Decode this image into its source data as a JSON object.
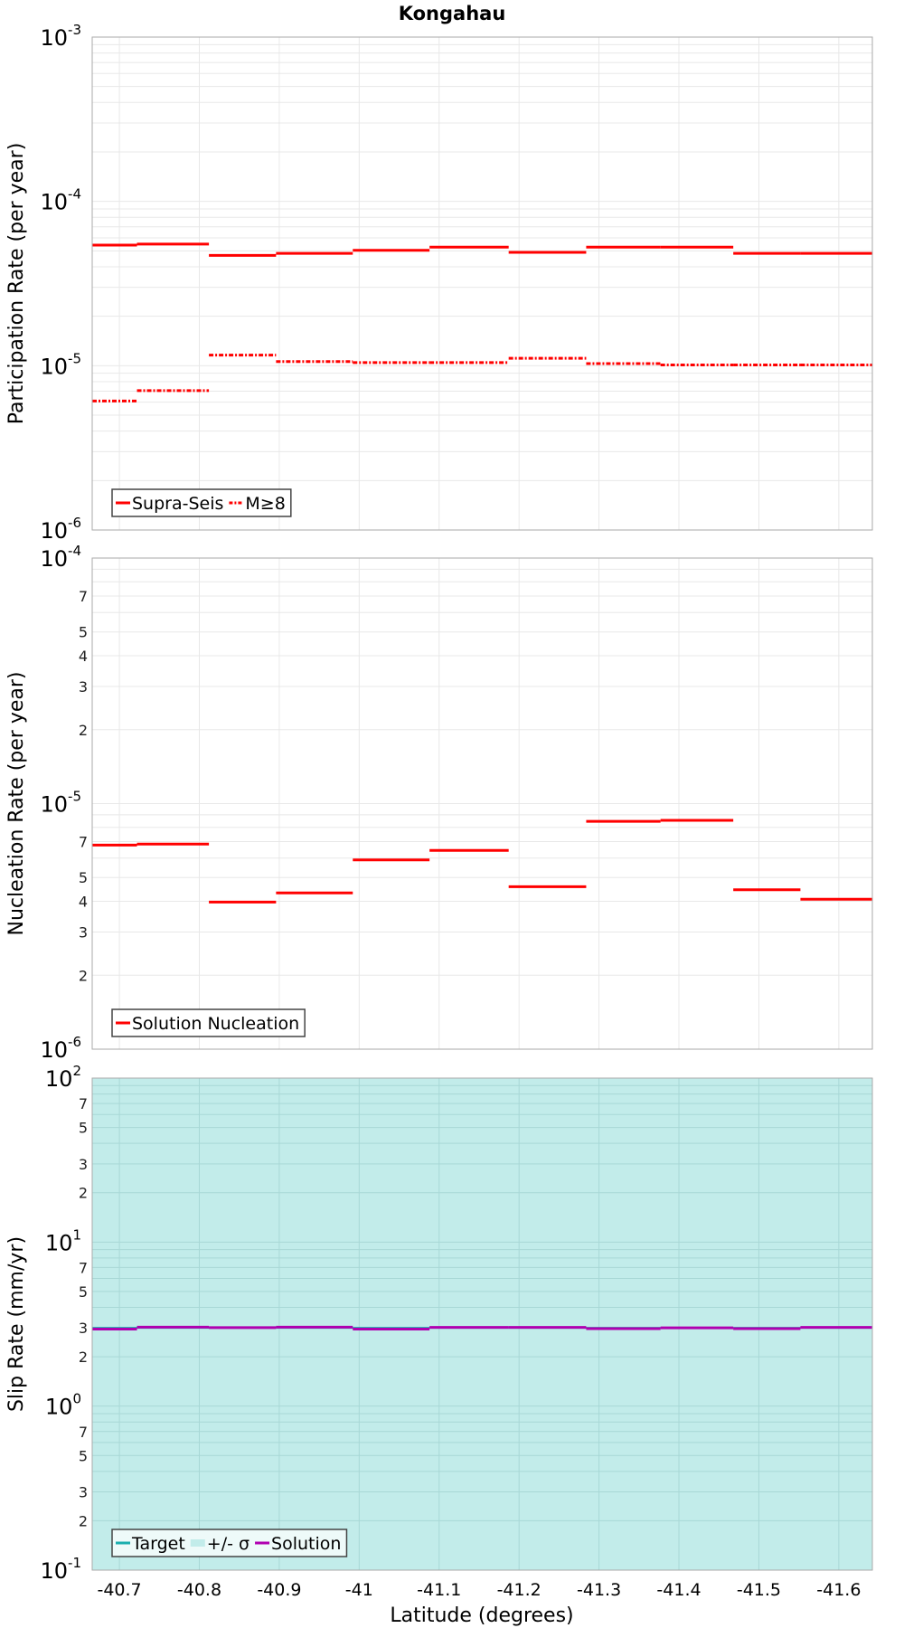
{
  "chart_data": {
    "type": "line",
    "title": "Kongahau",
    "xlabel": "Latitude (degrees)",
    "xlim": [
      -40.666,
      -41.642
    ],
    "xticks": [
      -40.7,
      -40.8,
      -40.9,
      -41,
      -41.1,
      -41.2,
      -41.3,
      -41.4,
      -41.5,
      -41.6
    ],
    "xtick_labels": [
      "-40.7",
      "-40.8",
      "-40.9",
      "-41",
      "-41.1",
      "-41.2",
      "-41.3",
      "-41.4",
      "-41.5",
      "-41.6"
    ],
    "segment_bounds": [
      -40.666,
      -40.722,
      -40.812,
      -40.896,
      -40.992,
      -41.088,
      -41.187,
      -41.284,
      -41.377,
      -41.468,
      -41.552,
      -41.642
    ],
    "panels": [
      {
        "ylabel": "Participation Rate (per year)",
        "yscale": "log",
        "ylim_exp": [
          -6,
          -3
        ],
        "minor_labels": [],
        "legend_placement": "bottom-left",
        "series": [
          {
            "name": "Supra-Seis",
            "style": "solid",
            "color": "#ff0000",
            "values": [
              5.42e-05,
              5.5e-05,
              4.69e-05,
              4.83e-05,
              5.04e-05,
              5.27e-05,
              4.9e-05,
              5.27e-05,
              5.27e-05,
              4.83e-05,
              4.83e-05
            ]
          },
          {
            "name": "M≥8",
            "style": "dashdot",
            "color": "#ff0000",
            "values": [
              6.1e-06,
              7.05e-06,
              1.16e-05,
              1.06e-05,
              1.045e-05,
              1.045e-05,
              1.11e-05,
              1.03e-05,
              1.01e-05,
              1.01e-05,
              1.01e-05
            ]
          }
        ]
      },
      {
        "ylabel": "Nucleation Rate (per year)",
        "yscale": "log",
        "ylim_exp": [
          -6,
          -4
        ],
        "minor_labels": [
          2,
          3,
          4,
          5,
          7
        ],
        "legend_placement": "bottom-left",
        "series": [
          {
            "name": "Solution Nucleation",
            "style": "solid",
            "color": "#ff0000",
            "values": [
              6.78e-06,
              6.84e-06,
              3.97e-06,
              4.33e-06,
              5.9e-06,
              6.45e-06,
              4.59e-06,
              8.47e-06,
              8.55e-06,
              4.46e-06,
              4.08e-06
            ]
          }
        ]
      },
      {
        "ylabel": "Slip Rate (mm/yr)",
        "yscale": "log",
        "ylim_exp": [
          -1,
          2
        ],
        "minor_labels": [
          2,
          3,
          5,
          7
        ],
        "legend_placement": "bottom-left",
        "band": {
          "name": "+/- σ",
          "color": "#c2ecea",
          "low": 0.1,
          "high": 100
        },
        "series": [
          {
            "name": "Target",
            "style": "solid",
            "color": "#1aaeae",
            "values": [
              3.0,
              3.0,
              3.0,
              3.0,
              3.0,
              3.0,
              3.0,
              3.0,
              3.0,
              3.0,
              3.0
            ]
          },
          {
            "name": "Solution",
            "style": "solid",
            "color": "#b000b0",
            "values": [
              2.95,
              3.03,
              3.01,
              3.03,
              2.95,
              3.02,
              3.02,
              2.97,
              3.0,
              2.97,
              3.02
            ]
          }
        ],
        "legend_order": [
          "Target",
          "+/- σ",
          "Solution"
        ]
      }
    ]
  }
}
